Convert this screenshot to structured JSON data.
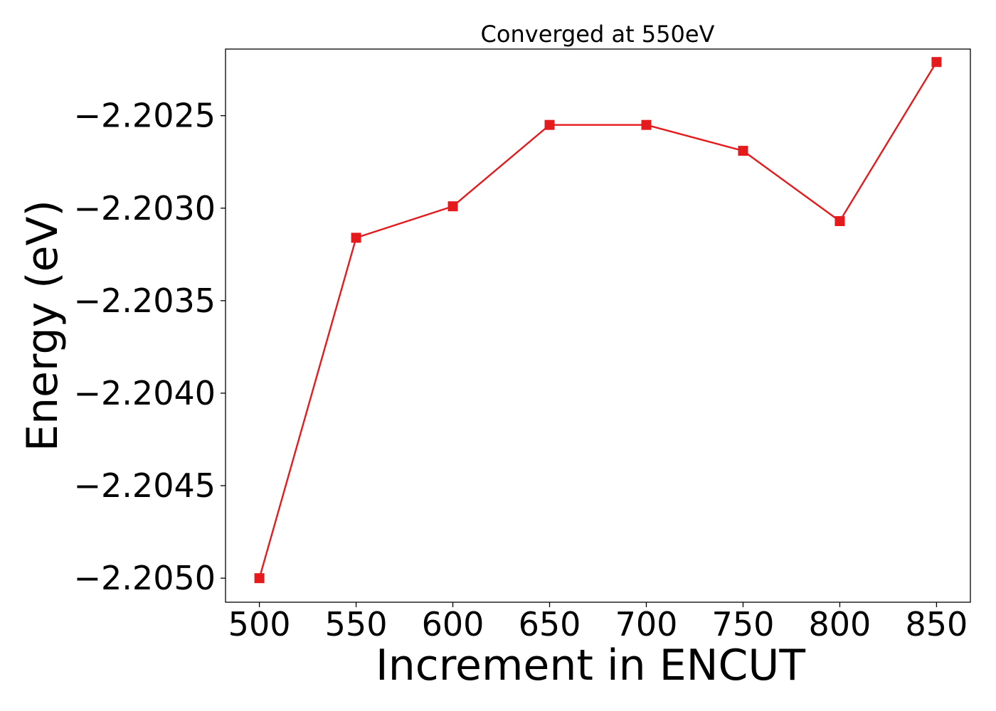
{
  "chart_data": {
    "type": "line",
    "title": "Converged at 550eV",
    "xlabel": "Increment in ENCUT",
    "ylabel": "Energy (eV)",
    "xlim": [
      482.5,
      867.5
    ],
    "ylim": [
      -2.20513,
      -2.20214
    ],
    "x_ticks": [
      500,
      550,
      600,
      650,
      700,
      750,
      800,
      850
    ],
    "y_ticks": [
      -2.205,
      -2.2045,
      -2.204,
      -2.2035,
      -2.203,
      -2.2025
    ],
    "y_tick_labels": [
      "−2.2050",
      "−2.2045",
      "−2.2040",
      "−2.2035",
      "−2.2030",
      "−2.2025"
    ],
    "grid": false,
    "series": [
      {
        "color": "#e41a1c",
        "marker": "square",
        "x": [
          500,
          550,
          600,
          650,
          700,
          750,
          800,
          850
        ],
        "y": [
          -2.205,
          -2.20316,
          -2.20299,
          -2.20255,
          -2.20255,
          -2.20269,
          -2.20307,
          -2.20221
        ]
      }
    ]
  }
}
